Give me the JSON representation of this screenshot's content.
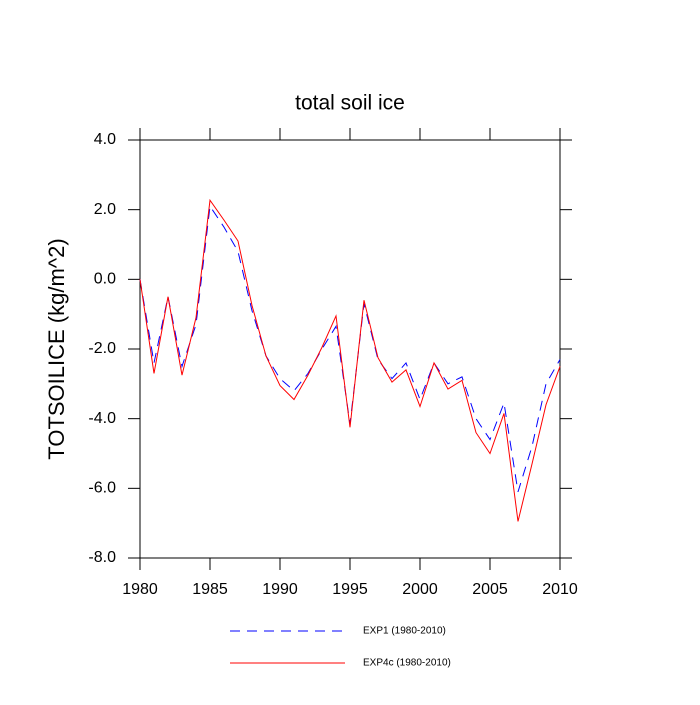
{
  "chart_data": {
    "type": "line",
    "title": "total soil ice",
    "y_label": "TOTSOILICE  (kg/m^2)",
    "x": [
      1980,
      1981,
      1982,
      1983,
      1984,
      1985,
      1986,
      1987,
      1988,
      1989,
      1990,
      1991,
      1992,
      1993,
      1994,
      1995,
      1996,
      1997,
      1998,
      1999,
      2000,
      2001,
      2002,
      2003,
      2004,
      2005,
      2006,
      2007,
      2008,
      2009,
      2010
    ],
    "series": [
      {
        "name": "EXP1 (1980-2010)",
        "color": "#0000ff",
        "dash": "dashed",
        "values": [
          0.0,
          -2.4,
          -0.5,
          -2.5,
          -1.3,
          2.1,
          1.5,
          0.8,
          -0.9,
          -2.2,
          -2.85,
          -3.2,
          -2.7,
          -2.0,
          -1.35,
          -4.15,
          -0.7,
          -2.3,
          -2.85,
          -2.4,
          -3.45,
          -2.4,
          -3.0,
          -2.8,
          -4.0,
          -4.6,
          -3.55,
          -6.1,
          -4.8,
          -3.0,
          -2.3
        ]
      },
      {
        "name": "EXP4c (1980-2010)",
        "color": "#ff0000",
        "dash": "solid",
        "values": [
          0.0,
          -2.7,
          -0.5,
          -2.75,
          -1.1,
          2.27,
          1.7,
          1.1,
          -0.75,
          -2.2,
          -3.05,
          -3.45,
          -2.75,
          -1.95,
          -1.05,
          -4.25,
          -0.6,
          -2.25,
          -2.95,
          -2.6,
          -3.65,
          -2.4,
          -3.15,
          -2.9,
          -4.4,
          -5.0,
          -3.85,
          -6.95,
          -5.3,
          -3.6,
          -2.5
        ]
      }
    ],
    "xlim": [
      1980,
      2010
    ],
    "xticks": [
      1980,
      1985,
      1990,
      1995,
      2000,
      2005,
      2010
    ],
    "ylim": [
      -8,
      4
    ],
    "yticks": [
      {
        "value": 4,
        "label": "4.0"
      },
      {
        "value": 2,
        "label": "2.0"
      },
      {
        "value": 0,
        "label": "0.0"
      },
      {
        "value": -2,
        "label": "-2.0"
      },
      {
        "value": -4,
        "label": "-4.0"
      },
      {
        "value": -6,
        "label": "-6.0"
      },
      {
        "value": -8,
        "label": "-8.0"
      }
    ],
    "grid": false,
    "legend": "bottom"
  }
}
